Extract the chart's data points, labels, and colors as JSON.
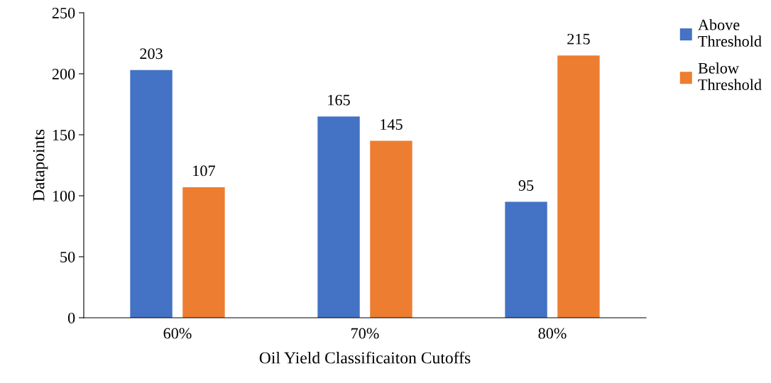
{
  "chart_data": {
    "type": "bar",
    "xlabel": "Oil Yield Classificaiton Cutoffs",
    "ylabel": "Datapoints",
    "categories": [
      "60%",
      "70%",
      "80%"
    ],
    "series": [
      {
        "name": "Above Threshold",
        "color": "#4472c4",
        "values": [
          203,
          165,
          95
        ]
      },
      {
        "name": "Below Threshold",
        "color": "#ed7d31",
        "values": [
          107,
          145,
          215
        ]
      }
    ],
    "ylim": [
      0,
      250
    ],
    "yticks": [
      0,
      50,
      100,
      150,
      200,
      250
    ],
    "data_labels": true,
    "legend": "right",
    "grid": false
  }
}
